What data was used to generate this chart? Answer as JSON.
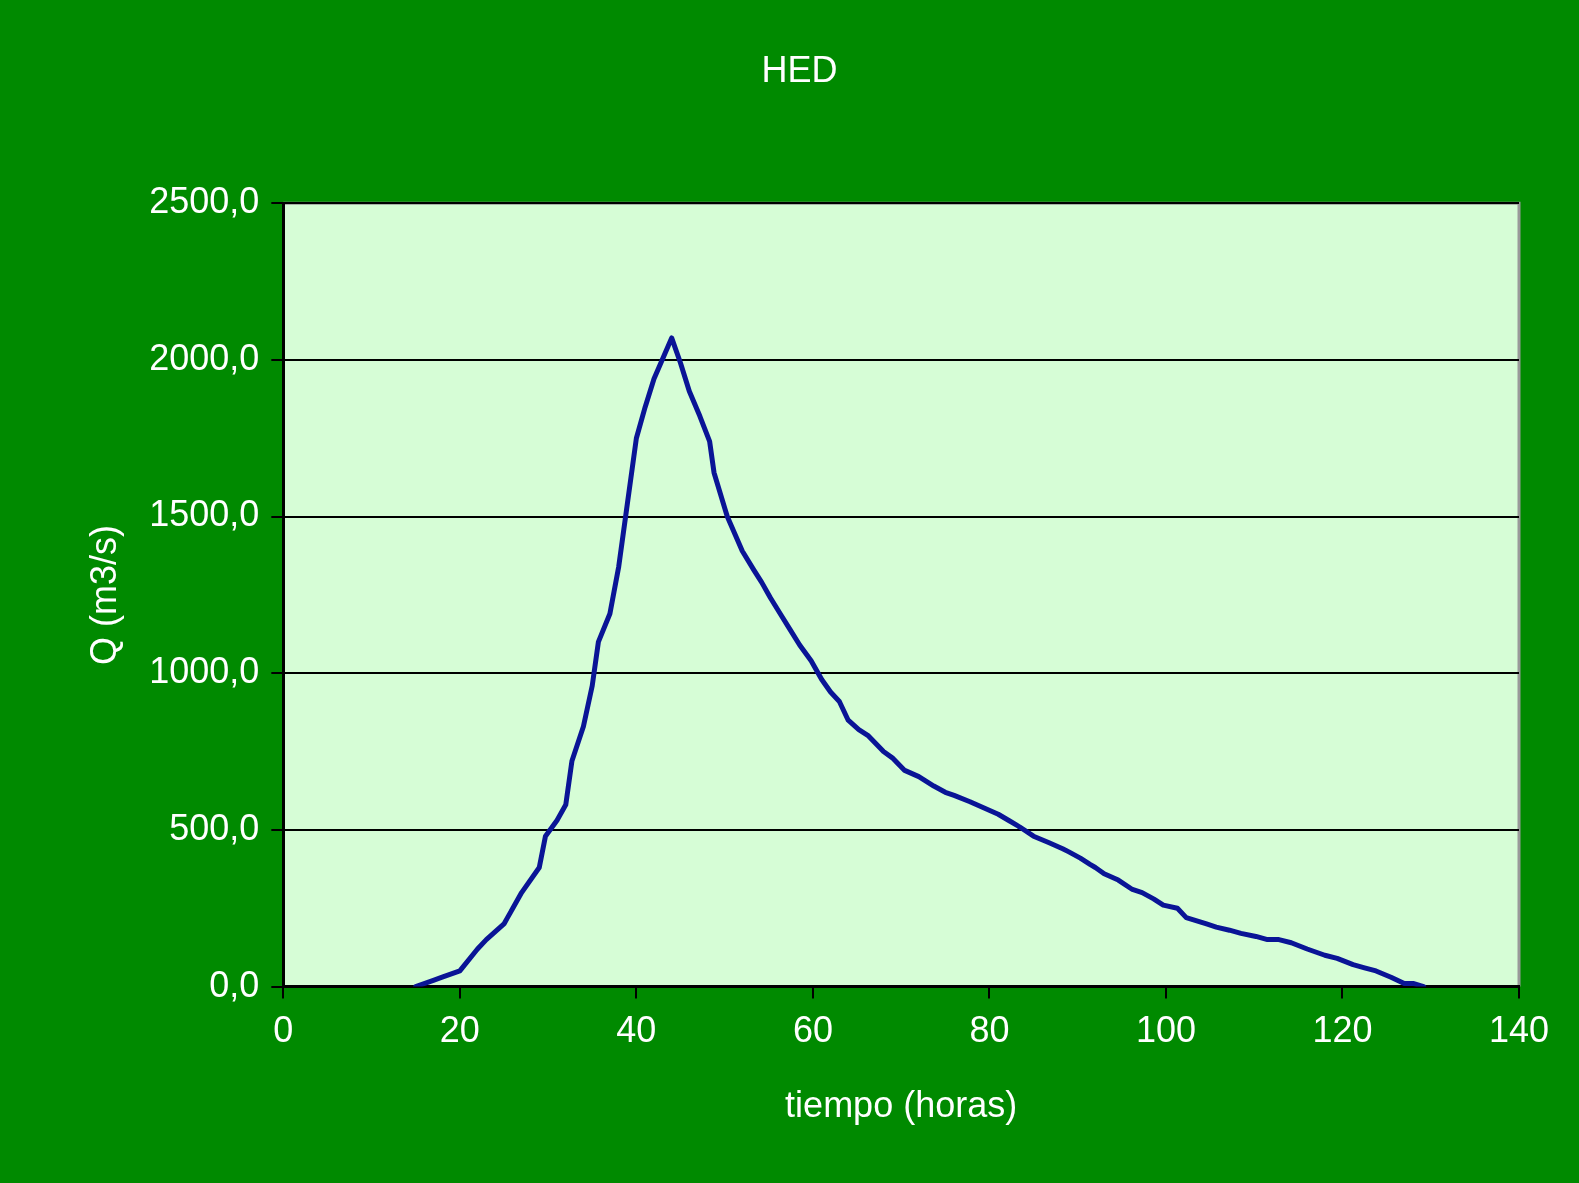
{
  "chart_data": {
    "type": "line",
    "title": "HED",
    "xlabel": "tiempo (horas)",
    "ylabel": "Q (m3/s)",
    "xlim": [
      0,
      140
    ],
    "xticks": [
      0,
      20,
      40,
      60,
      80,
      100,
      120,
      140
    ],
    "ylim": [
      0,
      2500
    ],
    "yticks": [
      {
        "value": 0,
        "label": "0,0"
      },
      {
        "value": 500,
        "label": "500,0"
      },
      {
        "value": 1000,
        "label": "1000,0"
      },
      {
        "value": 1500,
        "label": "1500,0"
      },
      {
        "value": 2000,
        "label": "2000,0"
      },
      {
        "value": 2500,
        "label": "2500,0"
      }
    ],
    "grid": "y",
    "legend": false,
    "marker": "none",
    "line_style": "solid",
    "series": [
      {
        "color": "#0a1496",
        "x": [
          15,
          17,
          18,
          20,
          22,
          23,
          25,
          26,
          27,
          29,
          29.7,
          31,
          32,
          32.7,
          34,
          35,
          35.7,
          37,
          38,
          40,
          41,
          42,
          44,
          45,
          46,
          47.2,
          48.3,
          48.8,
          50.3,
          52,
          53.3,
          54.2,
          55.2,
          56.3,
          57.4,
          58.5,
          59.8,
          61,
          62,
          63,
          64,
          65.2,
          66.3,
          68,
          69,
          70.4,
          72,
          73.7,
          75,
          76,
          77.8,
          79.4,
          81,
          82.2,
          83.4,
          85,
          86.7,
          88.3,
          89,
          90.3,
          91.4,
          92,
          93,
          94.6,
          96.2,
          97.3,
          98.6,
          99.7,
          101.3,
          102.3,
          104.6,
          105.7,
          107.2,
          108.5,
          110.2,
          111.5,
          112.8,
          114.2,
          116,
          118,
          119.4,
          121.2,
          122.5,
          123.8,
          125.5,
          127,
          128,
          129.2
        ],
        "values": [
          0,
          20,
          30,
          50,
          120,
          150,
          200,
          250,
          300,
          380,
          480,
          530,
          580,
          720,
          830,
          960,
          1100,
          1190,
          1340,
          1750,
          1850,
          1940,
          2070,
          1990,
          1900,
          1820,
          1740,
          1640,
          1500,
          1390,
          1330,
          1290,
          1240,
          1190,
          1140,
          1090,
          1040,
          980,
          940,
          910,
          850,
          820,
          800,
          750,
          730,
          690,
          670,
          640,
          620,
          610,
          590,
          570,
          550,
          530,
          510,
          480,
          460,
          440,
          430,
          410,
          390,
          380,
          360,
          340,
          310,
          300,
          280,
          260,
          250,
          220,
          200,
          190,
          180,
          170,
          160,
          150,
          150,
          140,
          120,
          100,
          90,
          70,
          60,
          50,
          30,
          10,
          10,
          0
        ]
      }
    ]
  }
}
